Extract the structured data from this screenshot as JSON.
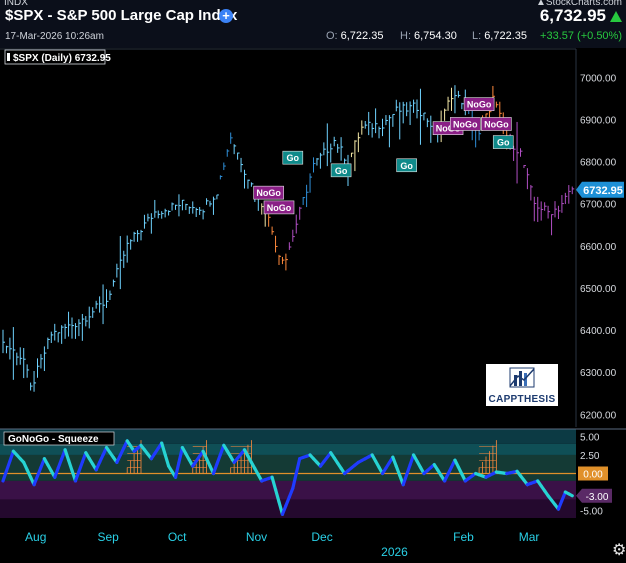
{
  "header": {
    "exchange": "INDX",
    "brand": "▲StockCharts.com",
    "title": "$SPX - S&P 500 Large Cap Index",
    "last_price": "6,732.95",
    "datetime": "17-Mar-2026 10:26am",
    "open_label": "O:",
    "open": "6,722.35",
    "high_label": "H:",
    "high": "6,754.30",
    "low_label": "L:",
    "low": "6,722.35",
    "change": "+33.57 (+0.50%)",
    "add_icon": "plus-circle-icon"
  },
  "colors": {
    "background": "#000000",
    "header_bg": "#0b0f1a",
    "go_bright": "#6fd3ff",
    "go_weak": "#2f8fd8",
    "nogo_bright": "#b14fc4",
    "nogo_weak": "#ff8a3c",
    "neutral": "#f5e9a8",
    "osc_up": "#1f3bff",
    "osc_down": "#27d3d3",
    "go_label_bg": "#0f8a8a",
    "nogo_label_bg": "#8a1f86",
    "price_badge": "#1e90d6",
    "up": "#27c93f"
  },
  "branding": {
    "logo_text": "CAPPTHESIS",
    "logo_icon": "bar-chart-logo-icon"
  },
  "settings_icon": "gear-icon",
  "chart_data": [
    {
      "type": "bar",
      "title": "$SPX (Daily) 6732.95",
      "ylim": [
        6170,
        7060
      ],
      "yticks": [
        6200,
        6300,
        6400,
        6500,
        6600,
        6700,
        6800,
        6900,
        7000
      ],
      "ytick_labels": [
        "6200.00",
        "6300.00",
        "6400.00",
        "6500.00",
        "6600.00",
        "6700.00",
        "6800.00",
        "6900.00",
        "7000.00"
      ],
      "last_value": 6732.95,
      "last_label": "6732.95",
      "x_ticks": [
        {
          "label": "Aug",
          "index": 6
        },
        {
          "label": "Sep",
          "index": 27
        },
        {
          "label": "Oct",
          "index": 47
        },
        {
          "label": "Nov",
          "index": 70
        },
        {
          "label": "Dec",
          "index": 89
        },
        {
          "label": "Feb",
          "index": 130
        },
        {
          "label": "Mar",
          "index": 149
        }
      ],
      "year_label": {
        "label": "2026",
        "index": 110
      },
      "anchors": [
        [
          0,
          6370,
          "go_bright"
        ],
        [
          6,
          6330,
          "go_bright"
        ],
        [
          8,
          6260,
          "go_bright"
        ],
        [
          14,
          6390,
          "go_bright"
        ],
        [
          22,
          6420,
          "go_bright"
        ],
        [
          30,
          6470,
          "go_bright"
        ],
        [
          36,
          6600,
          "go_bright"
        ],
        [
          44,
          6680,
          "go_bright"
        ],
        [
          52,
          6700,
          "go_bright"
        ],
        [
          58,
          6690,
          "go_bright"
        ],
        [
          62,
          6730,
          "go_weak"
        ],
        [
          66,
          6860,
          "go_bright"
        ],
        [
          70,
          6780,
          "go_bright"
        ],
        [
          74,
          6710,
          "neutral"
        ],
        [
          76,
          6690,
          "nogo_weak"
        ],
        [
          80,
          6580,
          "nogo_weak"
        ],
        [
          82,
          6570,
          "nogo_bright"
        ],
        [
          86,
          6680,
          "go_weak"
        ],
        [
          90,
          6790,
          "go_bright"
        ],
        [
          96,
          6850,
          "go_bright"
        ],
        [
          100,
          6800,
          "neutral"
        ],
        [
          104,
          6880,
          "go_bright"
        ],
        [
          110,
          6890,
          "go_bright"
        ],
        [
          114,
          6920,
          "go_bright"
        ],
        [
          120,
          6930,
          "go_bright"
        ],
        [
          126,
          6870,
          "neutral"
        ],
        [
          130,
          6960,
          "go_bright"
        ],
        [
          134,
          6940,
          "go_weak"
        ],
        [
          138,
          6860,
          "nogo_weak"
        ],
        [
          142,
          6950,
          "nogo_weak"
        ],
        [
          146,
          6860,
          "nogo_bright"
        ],
        [
          150,
          6820,
          "nogo_bright"
        ],
        [
          154,
          6700,
          "nogo_bright"
        ],
        [
          158,
          6680,
          "nogo_bright"
        ],
        [
          161,
          6690,
          "nogo_bright"
        ],
        [
          165,
          6735,
          "nogo_bright"
        ]
      ],
      "annotations": [
        {
          "label": "NoGo",
          "index": 77,
          "value": 6725,
          "kind": "nogo"
        },
        {
          "label": "NoGo",
          "index": 80,
          "value": 6690,
          "kind": "nogo"
        },
        {
          "label": "Go",
          "index": 84,
          "value": 6808,
          "kind": "go"
        },
        {
          "label": "Go",
          "index": 98,
          "value": 6778,
          "kind": "go"
        },
        {
          "label": "Go",
          "index": 117,
          "value": 6790,
          "kind": "go"
        },
        {
          "label": "NoGo",
          "index": 129,
          "value": 6878,
          "kind": "nogo"
        },
        {
          "label": "NoGo",
          "index": 134,
          "value": 6888,
          "kind": "nogo"
        },
        {
          "label": "NoGo",
          "index": 138,
          "value": 6935,
          "kind": "nogo"
        },
        {
          "label": "NoGo",
          "index": 143,
          "value": 6888,
          "kind": "nogo"
        },
        {
          "label": "Go",
          "index": 145,
          "value": 6845,
          "kind": "go"
        }
      ]
    },
    {
      "type": "line",
      "title": "GoNoGo - Squeeze",
      "ylim": [
        -6,
        6
      ],
      "yticks": [
        5,
        2.5,
        -5
      ],
      "ytick_labels": [
        "5.00",
        "2.50",
        "-5.00"
      ],
      "zero_label": "0.00",
      "last_value": -3,
      "last_label": "-3.00",
      "anchors": [
        [
          0,
          -1
        ],
        [
          3,
          3
        ],
        [
          6,
          1.5
        ],
        [
          9,
          -1.5
        ],
        [
          12,
          2
        ],
        [
          15,
          -0.5
        ],
        [
          18,
          3.2
        ],
        [
          21,
          -1
        ],
        [
          24,
          2.8
        ],
        [
          27,
          0.5
        ],
        [
          30,
          3.5
        ],
        [
          33,
          1.5
        ],
        [
          36,
          4.4
        ],
        [
          38,
          3
        ],
        [
          40,
          3.8
        ],
        [
          43,
          2
        ],
        [
          46,
          4.1
        ],
        [
          48,
          1
        ],
        [
          50,
          -0.5
        ],
        [
          52,
          3.5
        ],
        [
          55,
          1
        ],
        [
          58,
          3
        ],
        [
          61,
          0
        ],
        [
          64,
          3.8
        ],
        [
          67,
          1.5
        ],
        [
          70,
          3.2
        ],
        [
          72,
          1.5
        ],
        [
          75,
          -1
        ],
        [
          78,
          -0.5
        ],
        [
          81,
          -5.5
        ],
        [
          84,
          -2
        ],
        [
          86,
          2
        ],
        [
          89,
          2.5
        ],
        [
          92,
          1
        ],
        [
          95,
          2.8
        ],
        [
          99,
          0
        ],
        [
          103,
          1.5
        ],
        [
          107,
          2.5
        ],
        [
          110,
          0
        ],
        [
          113,
          2.2
        ],
        [
          116,
          -1.5
        ],
        [
          119,
          2.5
        ],
        [
          122,
          0
        ],
        [
          125,
          1.2
        ],
        [
          128,
          -1
        ],
        [
          131,
          1.8
        ],
        [
          134,
          -1
        ],
        [
          137,
          0
        ],
        [
          140,
          -0.5
        ],
        [
          143,
          0.2
        ],
        [
          146,
          0
        ],
        [
          149,
          0.3
        ],
        [
          152,
          -1.5
        ],
        [
          155,
          -1
        ],
        [
          158,
          -3
        ],
        [
          161,
          -4.8
        ],
        [
          163,
          -2.5
        ],
        [
          165,
          -3
        ]
      ],
      "squeeze_zones": [
        [
          36,
          40
        ],
        [
          55,
          59
        ],
        [
          66,
          72
        ],
        [
          138,
          143
        ]
      ]
    }
  ]
}
